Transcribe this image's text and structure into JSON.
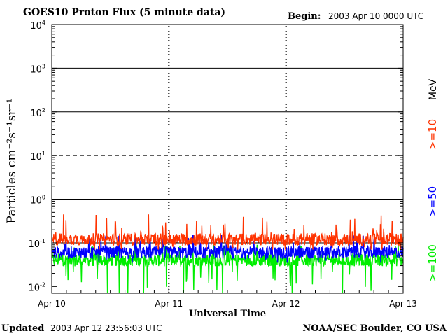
{
  "header": {
    "title": "GOES10 Proton Flux (5 minute data)",
    "begin_label": "Begin:",
    "begin_value": "2003 Apr 10 0000 UTC"
  },
  "footer": {
    "updated_label": "Updated",
    "updated_value": "2003 Apr 12 23:56:03 UTC",
    "credit": "NOAA/SEC Boulder, CO USA"
  },
  "chart_data": {
    "type": "line",
    "title": "GOES10 Proton Flux (5 minute data)",
    "xlabel": "Universal Time",
    "ylabel": "Particles cm⁻²s⁻¹sr⁻¹",
    "yscale": "log",
    "ylim": [
      0.007,
      10000
    ],
    "xlim": [
      0,
      3
    ],
    "x_ticks": [
      {
        "value": 0,
        "label": "Apr 10"
      },
      {
        "value": 1,
        "label": "Apr 11"
      },
      {
        "value": 2,
        "label": "Apr 12"
      },
      {
        "value": 3,
        "label": "Apr 13"
      }
    ],
    "y_ticks": [
      {
        "value": 0.01,
        "base": "10",
        "exp": "-2"
      },
      {
        "value": 0.1,
        "base": "10",
        "exp": "-1"
      },
      {
        "value": 1,
        "base": "10",
        "exp": "0"
      },
      {
        "value": 10,
        "base": "10",
        "exp": "1"
      },
      {
        "value": 100,
        "base": "10",
        "exp": "2"
      },
      {
        "value": 1000,
        "base": "10",
        "exp": "3"
      },
      {
        "value": 10000,
        "base": "10",
        "exp": "4"
      }
    ],
    "gridlines": [
      {
        "value": 0.1,
        "style": "solid"
      },
      {
        "value": 1,
        "style": "solid"
      },
      {
        "value": 10,
        "style": "dashed"
      },
      {
        "value": 100,
        "style": "solid"
      },
      {
        "value": 1000,
        "style": "solid"
      }
    ],
    "legend": {
      "placement": "right",
      "unit": "MeV",
      "entries": [
        {
          "label": ">=10",
          "color": "#ff3300"
        },
        {
          "label": ">=50",
          "color": "#0000ff"
        },
        {
          "label": ">=100",
          "color": "#00ee00"
        }
      ]
    },
    "series": [
      {
        "name": ">=10 MeV",
        "color": "#ff3300",
        "typical": 0.12,
        "min": 0.07,
        "max": 0.45
      },
      {
        "name": ">=50 MeV",
        "color": "#0000ff",
        "typical": 0.06,
        "min": 0.035,
        "max": 0.15
      },
      {
        "name": ">=100 MeV",
        "color": "#00ee00",
        "typical": 0.04,
        "min": 0.007,
        "max": 0.09
      }
    ]
  }
}
